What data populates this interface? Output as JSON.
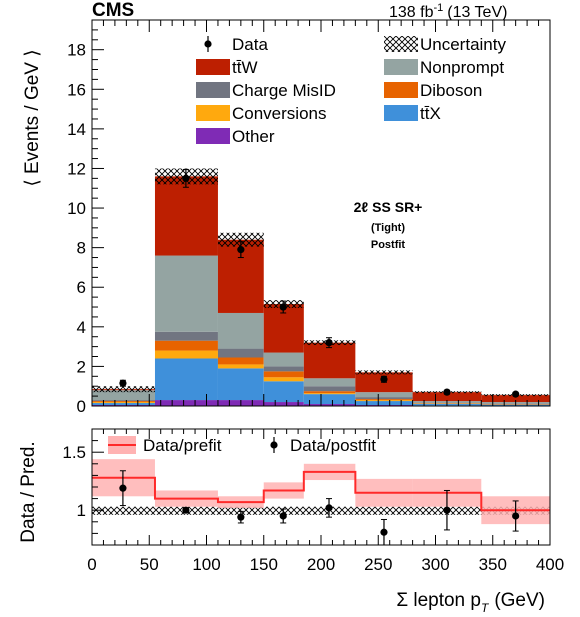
{
  "header": {
    "experiment": "CMS",
    "lumi_value": "138 fb",
    "lumi_exp": "-1",
    "lumi_energy": "(13 TeV)"
  },
  "region_label": {
    "line1": "2ℓ SS SR+",
    "line2": "(Tight)",
    "line3": "Postfit"
  },
  "chart_data": [
    {
      "type": "stacked-bar",
      "ylabel": "⟨ Events / GeV ⟩",
      "ylim": [
        0,
        19.5
      ],
      "y_ticks": [
        0,
        2,
        4,
        6,
        8,
        10,
        12,
        14,
        16,
        18
      ],
      "xlim": [
        0,
        400
      ],
      "bin_edges": [
        0,
        55,
        110,
        150,
        185,
        230,
        280,
        340,
        400
      ],
      "stack_order_bottom_to_top": [
        "Other",
        "ttX",
        "Conversions",
        "Diboson",
        "Charge MisID",
        "Nonprompt",
        "ttW"
      ],
      "components": [
        {
          "name": "Other",
          "color": "#7f2bb5",
          "values": [
            0.05,
            0.3,
            0.3,
            0.2,
            0.1,
            0.05,
            0.03,
            0.02
          ]
        },
        {
          "name": "ttX",
          "color": "#3f90da",
          "values": [
            0.1,
            2.1,
            1.6,
            1.05,
            0.5,
            0.2,
            0.07,
            0.05
          ]
        },
        {
          "name": "Conversions",
          "color": "#ffa90e",
          "values": [
            0.05,
            0.4,
            0.2,
            0.2,
            0.05,
            0.05,
            0.02,
            0.01
          ]
        },
        {
          "name": "Diboson",
          "color": "#e76300",
          "values": [
            0.05,
            0.5,
            0.35,
            0.3,
            0.1,
            0.05,
            0.02,
            0.02
          ]
        },
        {
          "name": "Charge MisID",
          "color": "#717581",
          "values": [
            0.05,
            0.45,
            0.45,
            0.25,
            0.25,
            0.1,
            0.03,
            0.02
          ]
        },
        {
          "name": "Nonprompt",
          "color": "#94a4a2",
          "values": [
            0.5,
            3.85,
            1.8,
            0.7,
            0.4,
            0.25,
            0.08,
            0.08
          ]
        },
        {
          "name": "ttW",
          "color": "#bd1f01",
          "values": [
            0.05,
            4.0,
            3.7,
            2.45,
            1.8,
            1.0,
            0.45,
            0.35
          ]
        }
      ],
      "total_prediction": [
        0.85,
        11.6,
        8.4,
        5.15,
        3.2,
        1.7,
        0.7,
        0.55
      ],
      "uncertainty": [
        0.15,
        0.4,
        0.35,
        0.2,
        0.12,
        0.1,
        0.05,
        0.05
      ],
      "data": {
        "name": "Data",
        "x": [
          27,
          82,
          130,
          167,
          207,
          255,
          310,
          370
        ],
        "y": [
          1.15,
          11.5,
          7.9,
          5.0,
          3.2,
          1.35,
          0.7,
          0.6
        ],
        "err": [
          0.15,
          0.45,
          0.4,
          0.3,
          0.25,
          0.15,
          0.1,
          0.08
        ]
      },
      "legend": [
        {
          "label": "Data",
          "kind": "marker"
        },
        {
          "label": "Uncertainty",
          "kind": "hatch"
        },
        {
          "label": "tt̄W",
          "kind": "fill",
          "color": "#bd1f01"
        },
        {
          "label": "Nonprompt",
          "kind": "fill",
          "color": "#94a4a2"
        },
        {
          "label": "Charge MisID",
          "kind": "fill",
          "color": "#717581"
        },
        {
          "label": "Diboson",
          "kind": "fill",
          "color": "#e76300"
        },
        {
          "label": "Conversions",
          "kind": "fill",
          "color": "#ffa90e"
        },
        {
          "label": "tt̄X",
          "kind": "fill",
          "color": "#3f90da"
        },
        {
          "label": "Other",
          "kind": "fill",
          "color": "#7f2bb5"
        }
      ]
    },
    {
      "type": "ratio",
      "ylabel": "Data / Pred.",
      "xlabel": "Σ lepton p",
      "xlabel_sub": "T",
      "xlabel_unit": "(GeV)",
      "xlim": [
        0,
        400
      ],
      "ylim": [
        0.7,
        1.7
      ],
      "x_ticks": [
        0,
        50,
        100,
        150,
        200,
        250,
        300,
        350,
        400
      ],
      "y_ticks": [
        1,
        1.5
      ],
      "y_tick_labels": [
        "1",
        "1.5"
      ],
      "bin_edges": [
        0,
        55,
        110,
        150,
        185,
        230,
        280,
        340,
        400
      ],
      "prefit": {
        "name": "Data/prefit",
        "color": "#ff2a2a",
        "band_color": "#ffb3b3",
        "values": [
          1.28,
          1.1,
          1.07,
          1.17,
          1.33,
          1.15,
          1.15,
          1.0
        ],
        "band_lo": [
          1.12,
          1.03,
          1.02,
          1.1,
          1.26,
          1.03,
          1.03,
          0.88
        ],
        "band_hi": [
          1.44,
          1.17,
          1.12,
          1.24,
          1.4,
          1.27,
          1.27,
          1.12
        ]
      },
      "uncertainty_band": {
        "lo": 0.96,
        "hi": 1.03
      },
      "postfit": {
        "name": "Data/postfit",
        "x": [
          27,
          82,
          130,
          167,
          207,
          255,
          310,
          370
        ],
        "y": [
          1.19,
          1.0,
          0.94,
          0.95,
          1.02,
          0.81,
          1.0,
          0.95
        ],
        "err": [
          0.15,
          0.02,
          0.05,
          0.06,
          0.08,
          0.11,
          0.17,
          0.13
        ]
      },
      "legend": [
        {
          "label": "Data/prefit",
          "kind": "band"
        },
        {
          "label": "Data/postfit",
          "kind": "marker"
        }
      ]
    }
  ]
}
